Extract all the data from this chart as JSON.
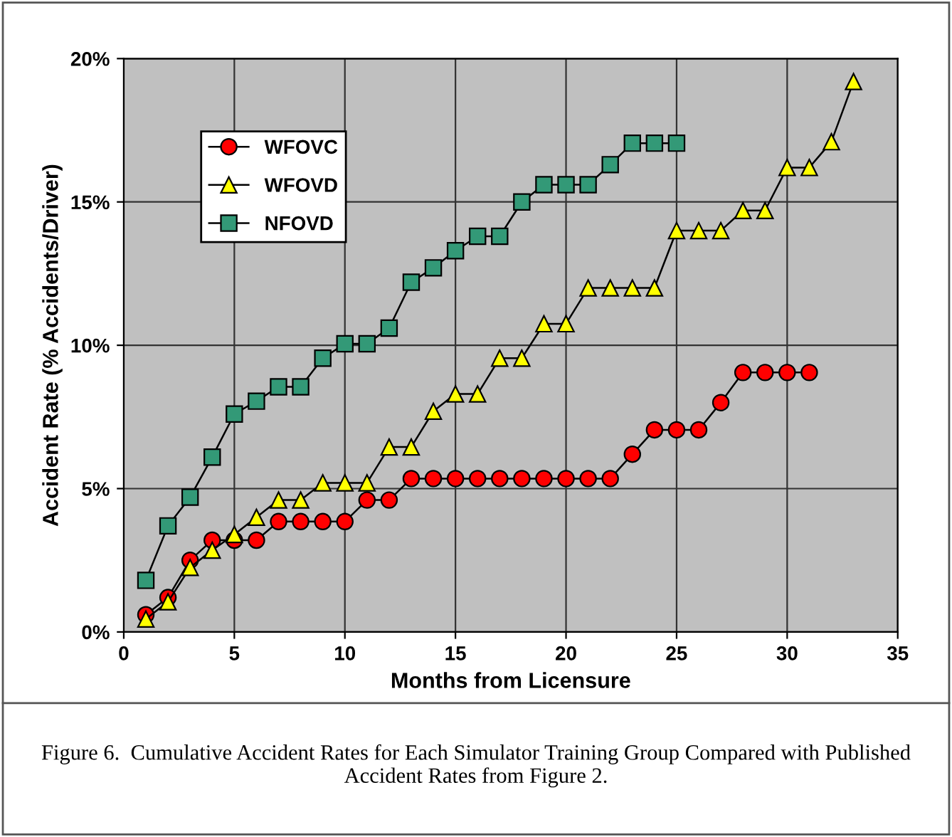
{
  "chart_data": {
    "type": "line",
    "xlabel": "Months from Licensure",
    "ylabel": "Accident Rate (% Accidents/Driver)",
    "xlim": [
      0,
      35
    ],
    "xticks": [
      0,
      5,
      10,
      15,
      20,
      25,
      30,
      35
    ],
    "ylim": [
      0,
      20
    ],
    "yticks": [
      {
        "value": 0,
        "label": "0%"
      },
      {
        "value": 5,
        "label": "5%"
      },
      {
        "value": 10,
        "label": "10%"
      },
      {
        "value": 15,
        "label": "15%"
      },
      {
        "value": 20,
        "label": "20%"
      }
    ],
    "grid": true,
    "legend": "top left",
    "series": [
      {
        "name": "WFOVC",
        "color": "#ff0000",
        "marker": "circle",
        "x": [
          1,
          2,
          3,
          4,
          5,
          6,
          7,
          8,
          9,
          10,
          11,
          12,
          13,
          14,
          15,
          16,
          17,
          18,
          19,
          20,
          21,
          22,
          23,
          24,
          25,
          26,
          27,
          28,
          29,
          30,
          31
        ],
        "values": [
          0.6,
          1.2,
          2.5,
          3.2,
          3.2,
          3.2,
          3.85,
          3.85,
          3.85,
          3.85,
          4.6,
          4.6,
          5.35,
          5.35,
          5.35,
          5.35,
          5.35,
          5.35,
          5.35,
          5.35,
          5.35,
          5.35,
          6.2,
          7.05,
          7.05,
          7.05,
          8.0,
          9.05,
          9.05,
          9.05,
          9.05
        ]
      },
      {
        "name": "WFOVD",
        "color": "#ffff00",
        "marker": "triangle",
        "x": [
          1,
          2,
          3,
          4,
          5,
          6,
          7,
          8,
          9,
          10,
          11,
          12,
          13,
          14,
          15,
          16,
          17,
          18,
          19,
          20,
          21,
          22,
          23,
          24,
          25,
          26,
          27,
          28,
          29,
          30,
          31,
          32,
          33
        ],
        "values": [
          0.45,
          1.05,
          2.25,
          2.85,
          3.4,
          4.0,
          4.6,
          4.6,
          5.2,
          5.2,
          5.2,
          6.45,
          6.45,
          7.7,
          8.3,
          8.3,
          9.55,
          9.55,
          10.75,
          10.75,
          12.0,
          12.0,
          12.0,
          12.0,
          14.0,
          14.0,
          14.0,
          14.7,
          14.7,
          16.2,
          16.2,
          17.1,
          19.2
        ]
      },
      {
        "name": "NFOVD",
        "color": "#339977",
        "marker": "square",
        "x": [
          1,
          2,
          3,
          4,
          5,
          6,
          7,
          8,
          9,
          10,
          11,
          12,
          13,
          14,
          15,
          16,
          17,
          18,
          19,
          20,
          21,
          22,
          23,
          24,
          25
        ],
        "values": [
          1.8,
          3.7,
          4.7,
          6.1,
          7.6,
          8.05,
          8.55,
          8.55,
          9.55,
          10.05,
          10.05,
          10.6,
          12.2,
          12.7,
          13.3,
          13.8,
          13.8,
          15.0,
          15.6,
          15.6,
          15.6,
          16.3,
          17.05,
          17.05,
          17.05
        ]
      }
    ],
    "annotations": [
      "Figure 6.  Cumulative Accident Rates for Each Simulator Training Group Compared with Published Accident Rates from Figure 2."
    ]
  }
}
